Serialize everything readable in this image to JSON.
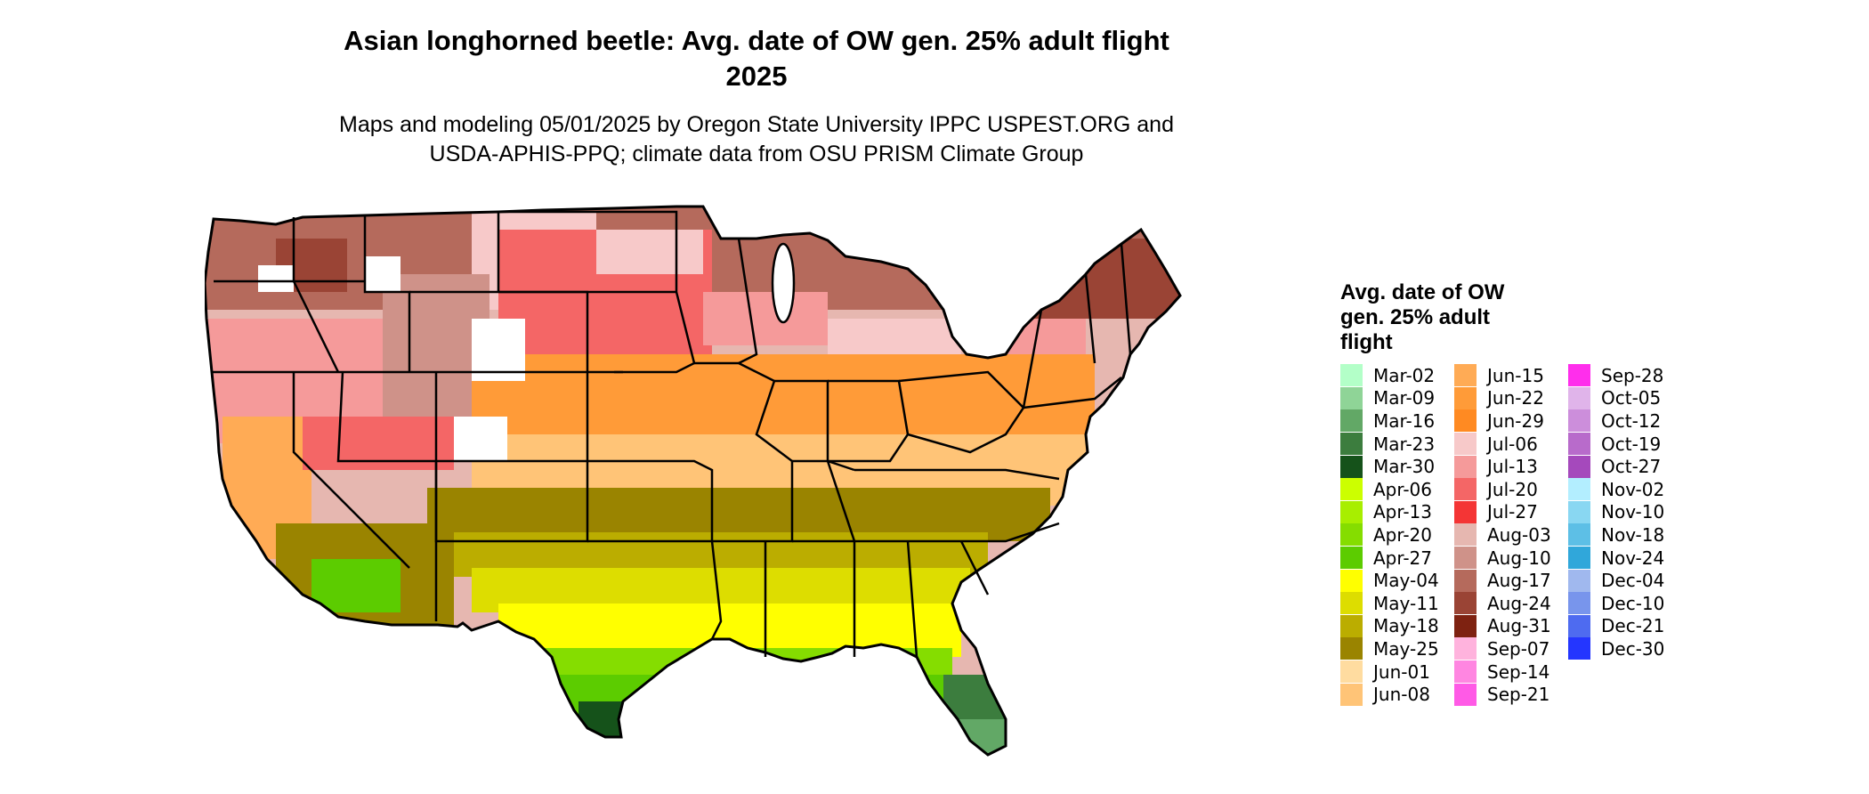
{
  "title": {
    "line1": "Asian longhorned beetle: Avg. date of OW gen. 25% adult flight",
    "line2": "2025"
  },
  "subtitle": {
    "line1": "Maps and modeling 05/01/2025 by Oregon State University IPPC USPEST.ORG and",
    "line2": "USDA-APHIS-PPQ; climate data from OSU PRISM Climate Group"
  },
  "legend": {
    "title_lines": [
      "Avg. date of OW",
      "gen. 25% adult",
      "flight"
    ],
    "columns": [
      [
        {
          "label": "Mar-02",
          "color": "#b3ffc8"
        },
        {
          "label": "Mar-09",
          "color": "#8fd497"
        },
        {
          "label": "Mar-16",
          "color": "#62a866"
        },
        {
          "label": "Mar-23",
          "color": "#3c7d3e"
        },
        {
          "label": "Mar-30",
          "color": "#15521a"
        },
        {
          "label": "Apr-06",
          "color": "#ccff00"
        },
        {
          "label": "Apr-13",
          "color": "#a8ee00"
        },
        {
          "label": "Apr-20",
          "color": "#85dd00"
        },
        {
          "label": "Apr-27",
          "color": "#5ccc00"
        },
        {
          "label": "May-04",
          "color": "#ffff00"
        },
        {
          "label": "May-11",
          "color": "#dddd00"
        },
        {
          "label": "May-18",
          "color": "#bbad00"
        },
        {
          "label": "May-25",
          "color": "#9a8400"
        },
        {
          "label": "Jun-01",
          "color": "#ffdca0"
        },
        {
          "label": "Jun-08",
          "color": "#ffc477"
        }
      ],
      [
        {
          "label": "Jun-15",
          "color": "#ffab55"
        },
        {
          "label": "Jun-22",
          "color": "#ff9b38"
        },
        {
          "label": "Jun-29",
          "color": "#ff8a22"
        },
        {
          "label": "Jul-06",
          "color": "#f7c9c9"
        },
        {
          "label": "Jul-13",
          "color": "#f59a9a"
        },
        {
          "label": "Jul-20",
          "color": "#f46666"
        },
        {
          "label": "Jul-27",
          "color": "#f43535"
        },
        {
          "label": "Aug-03",
          "color": "#e6b7b0"
        },
        {
          "label": "Aug-10",
          "color": "#cf9289"
        },
        {
          "label": "Aug-17",
          "color": "#b56a5c"
        },
        {
          "label": "Aug-24",
          "color": "#9a4435"
        },
        {
          "label": "Aug-31",
          "color": "#7e2211"
        },
        {
          "label": "Sep-07",
          "color": "#ffb3dd"
        },
        {
          "label": "Sep-14",
          "color": "#ff86e1"
        },
        {
          "label": "Sep-21",
          "color": "#ff5ae6"
        }
      ],
      [
        {
          "label": "Sep-28",
          "color": "#ff2eec"
        },
        {
          "label": "Oct-05",
          "color": "#e0b4ea"
        },
        {
          "label": "Oct-12",
          "color": "#cc8edb"
        },
        {
          "label": "Oct-19",
          "color": "#b86bcb"
        },
        {
          "label": "Oct-27",
          "color": "#a549bc"
        },
        {
          "label": "Nov-02",
          "color": "#b3eeff"
        },
        {
          "label": "Nov-10",
          "color": "#89d7f2"
        },
        {
          "label": "Nov-18",
          "color": "#5dbfe6"
        },
        {
          "label": "Nov-24",
          "color": "#30a7da"
        },
        {
          "label": "Dec-04",
          "color": "#a0b8ee"
        },
        {
          "label": "Dec-10",
          "color": "#7895ec"
        },
        {
          "label": "Dec-21",
          "color": "#4e6bf0"
        },
        {
          "label": "Dec-30",
          "color": "#2436ff"
        }
      ]
    ]
  }
}
